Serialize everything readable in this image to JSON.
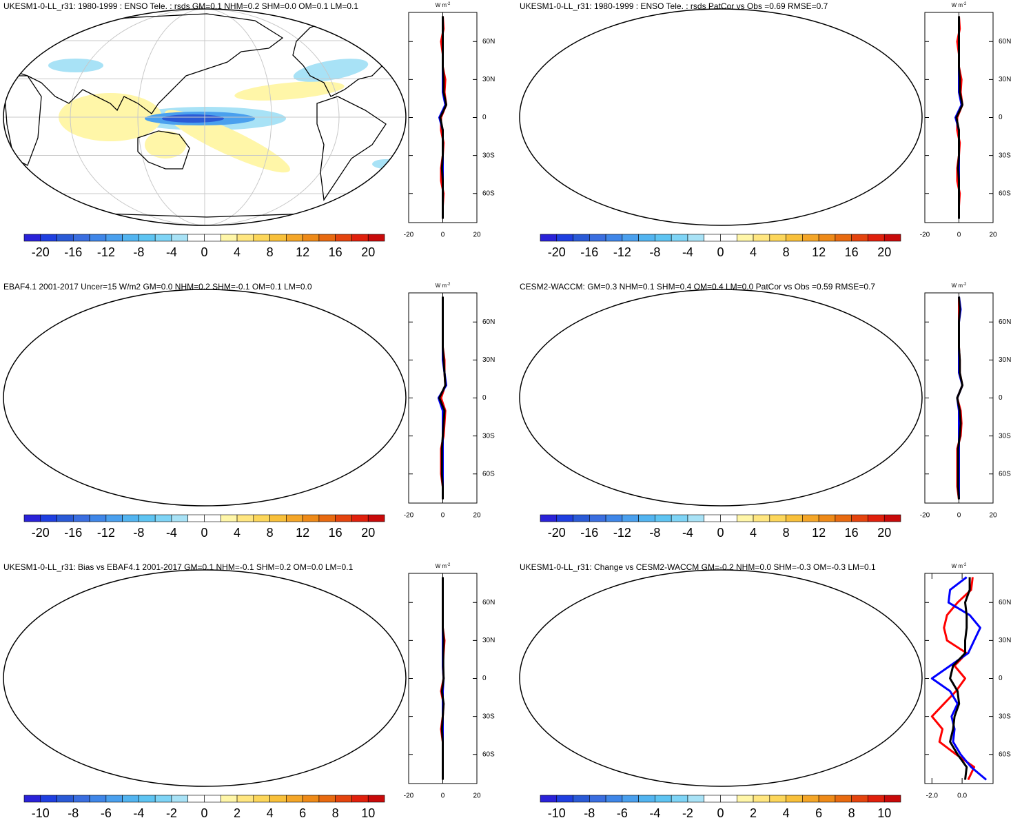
{
  "chart_data": [
    {
      "type": "map",
      "title": "UKESM1-0-LL_r31: 1980-1999 : ENSO Tele. : rsds GM=0.1 NHM=0.2 SHM=0.0 OM=0.1 LM=0.1",
      "colorbar": {
        "lim": [
          -22,
          22
        ],
        "ticks": [
          -20,
          -16,
          -12,
          -8,
          -4,
          0,
          4,
          8,
          12,
          16,
          20
        ],
        "colors": [
          "#2a22d8",
          "#1f3fe0",
          "#2a5ad6",
          "#3a6ee0",
          "#3f86e8",
          "#4aa0ee",
          "#52b4f0",
          "#5ec4f2",
          "#7ed4f6",
          "#a8e2f6",
          "#ffffff",
          "#ffffff",
          "#fff6a8",
          "#ffe680",
          "#fcd65a",
          "#f8c03a",
          "#f4a628",
          "#ee8a18",
          "#e86a10",
          "#e4440e",
          "#e0200c",
          "#c80a0a"
        ]
      },
      "profile": {
        "type": "line",
        "units": "W m",
        "units_exponent": "-2",
        "y": [
          -80,
          -70,
          -60,
          -50,
          -40,
          -30,
          -20,
          -10,
          0,
          10,
          20,
          30,
          40,
          50,
          60,
          70,
          80
        ],
        "ylim": [
          -83,
          83
        ],
        "yticks": [
          {
            "value": 60,
            "label": "60N"
          },
          {
            "value": 30,
            "label": "30N"
          },
          0,
          {
            "value": -30,
            "label": "30S"
          },
          {
            "value": -60,
            "label": "60S"
          }
        ],
        "xlim": [
          -20,
          20
        ],
        "xticks": [
          -20,
          0,
          20
        ],
        "series": [
          {
            "color": "#ff0000",
            "values": [
              0,
              0,
              0.5,
              -1,
              -1,
              0,
              0.5,
              -1,
              -1,
              2,
              1,
              1.5,
              0,
              0,
              -1,
              0.5,
              0
            ]
          },
          {
            "color": "#0000ff",
            "values": [
              0,
              0,
              0,
              0,
              0,
              0,
              0,
              0,
              -2,
              1.5,
              0,
              0,
              0,
              0,
              0,
              0,
              0
            ]
          },
          {
            "color": "#000000",
            "values": [
              0,
              0,
              0,
              0,
              -0.5,
              0,
              0,
              0,
              -1.5,
              2,
              0.5,
              0.5,
              0,
              0,
              0,
              0,
              0
            ]
          }
        ]
      }
    },
    {
      "type": "map",
      "title": "UKESM1-0-LL_r31: 1980-1999 : ENSO Tele. : rsds PatCor vs Obs =0.69 RMSE=0.7",
      "colorbar": {
        "lim": [
          -22,
          22
        ],
        "ticks": [
          -20,
          -16,
          -12,
          -8,
          -4,
          0,
          4,
          8,
          12,
          16,
          20
        ],
        "colors": [
          "#2a22d8",
          "#1f3fe0",
          "#2a5ad6",
          "#3a6ee0",
          "#3f86e8",
          "#4aa0ee",
          "#52b4f0",
          "#5ec4f2",
          "#7ed4f6",
          "#a8e2f6",
          "#ffffff",
          "#ffffff",
          "#fff6a8",
          "#ffe680",
          "#fcd65a",
          "#f8c03a",
          "#f4a628",
          "#ee8a18",
          "#e86a10",
          "#e4440e",
          "#e0200c",
          "#c80a0a"
        ]
      },
      "profile": {
        "type": "line",
        "units": "W m",
        "units_exponent": "-2",
        "y": [
          -80,
          -70,
          -60,
          -50,
          -40,
          -30,
          -20,
          -10,
          0,
          10,
          20,
          30,
          40,
          50,
          60,
          70,
          80
        ],
        "ylim": [
          -83,
          83
        ],
        "yticks": [
          {
            "value": 60,
            "label": "60N"
          },
          {
            "value": 30,
            "label": "30N"
          },
          0,
          {
            "value": -30,
            "label": "30S"
          },
          {
            "value": -60,
            "label": "60S"
          }
        ],
        "xlim": [
          -20,
          20
        ],
        "xticks": [
          -20,
          0,
          20
        ],
        "series": [
          {
            "color": "#ff0000",
            "values": [
              0,
              0,
              0.5,
              -1,
              -1,
              0,
              0.5,
              -1,
              -1,
              2,
              1,
              1.5,
              0,
              0,
              -1,
              0.5,
              0
            ]
          },
          {
            "color": "#0000ff",
            "values": [
              0,
              0,
              0,
              0,
              0,
              0,
              0,
              0,
              -2,
              1.5,
              0,
              0,
              0,
              0,
              0,
              0,
              0
            ]
          },
          {
            "color": "#000000",
            "values": [
              0,
              0,
              0,
              0,
              -0.5,
              0,
              0,
              0,
              -1.5,
              2,
              0.5,
              0.5,
              0,
              0,
              0,
              0,
              0
            ]
          }
        ]
      }
    },
    {
      "type": "map",
      "title": "EBAF4.1 2001-2017 Uncer=15 W/m2 GM=0.0 NHM=0.2 SHM=-0.1 OM=0.1 LM=0.0",
      "colorbar": {
        "lim": [
          -22,
          22
        ],
        "ticks": [
          -20,
          -16,
          -12,
          -8,
          -4,
          0,
          4,
          8,
          12,
          16,
          20
        ],
        "colors": [
          "#2a22d8",
          "#1f3fe0",
          "#2a5ad6",
          "#3a6ee0",
          "#3f86e8",
          "#4aa0ee",
          "#52b4f0",
          "#5ec4f2",
          "#7ed4f6",
          "#a8e2f6",
          "#ffffff",
          "#ffffff",
          "#fff6a8",
          "#ffe680",
          "#fcd65a",
          "#f8c03a",
          "#f4a628",
          "#ee8a18",
          "#e86a10",
          "#e4440e",
          "#e0200c",
          "#c80a0a"
        ]
      },
      "profile": {
        "type": "line",
        "units": "W m",
        "units_exponent": "-2",
        "y": [
          -80,
          -70,
          -60,
          -50,
          -40,
          -30,
          -20,
          -10,
          0,
          10,
          20,
          30,
          40,
          50,
          60,
          70,
          80
        ],
        "ylim": [
          -83,
          83
        ],
        "yticks": [
          {
            "value": 60,
            "label": "60N"
          },
          {
            "value": 30,
            "label": "30N"
          },
          0,
          {
            "value": -30,
            "label": "30S"
          },
          {
            "value": -60,
            "label": "60S"
          }
        ],
        "xlim": [
          -20,
          20
        ],
        "xticks": [
          -20,
          0,
          20
        ],
        "series": [
          {
            "color": "#ff0000",
            "values": [
              0,
              0,
              -1,
              -1,
              -1,
              0.5,
              1,
              1.5,
              -1,
              1.5,
              1,
              1,
              0,
              0,
              0,
              0,
              0
            ]
          },
          {
            "color": "#0000ff",
            "values": [
              0,
              0,
              0,
              0,
              0,
              0,
              0,
              0,
              -2.5,
              2,
              1,
              0,
              0,
              0,
              0,
              0,
              0
            ]
          },
          {
            "color": "#000000",
            "values": [
              0,
              0,
              -0.5,
              -0.5,
              -0.5,
              0,
              0.5,
              1,
              -2,
              1.5,
              1,
              0.5,
              0,
              0,
              0,
              0,
              0
            ]
          }
        ]
      }
    },
    {
      "type": "map",
      "title": "CESM2-WACCM: GM=0.3 NHM=0.1 SHM=0.4 OM=0.4 LM=0.0 PatCor vs Obs =0.59 RMSE=0.7",
      "colorbar": {
        "lim": [
          -22,
          22
        ],
        "ticks": [
          -20,
          -16,
          -12,
          -8,
          -4,
          0,
          4,
          8,
          12,
          16,
          20
        ],
        "colors": [
          "#2a22d8",
          "#1f3fe0",
          "#2a5ad6",
          "#3a6ee0",
          "#3f86e8",
          "#4aa0ee",
          "#52b4f0",
          "#5ec4f2",
          "#7ed4f6",
          "#a8e2f6",
          "#ffffff",
          "#ffffff",
          "#fff6a8",
          "#ffe680",
          "#fcd65a",
          "#f8c03a",
          "#f4a628",
          "#ee8a18",
          "#e86a10",
          "#e4440e",
          "#e0200c",
          "#c80a0a"
        ]
      },
      "profile": {
        "type": "line",
        "units": "W m",
        "units_exponent": "-2",
        "y": [
          -80,
          -70,
          -60,
          -50,
          -40,
          -30,
          -20,
          -10,
          0,
          10,
          20,
          30,
          40,
          50,
          60,
          70,
          80
        ],
        "ylim": [
          -83,
          83
        ],
        "yticks": [
          {
            "value": 60,
            "label": "60N"
          },
          {
            "value": 30,
            "label": "30N"
          },
          0,
          {
            "value": -30,
            "label": "30S"
          },
          {
            "value": -60,
            "label": "60S"
          }
        ],
        "xlim": [
          -20,
          20
        ],
        "xticks": [
          -20,
          0,
          20
        ],
        "series": [
          {
            "color": "#ff0000",
            "values": [
              0,
              -1,
              -1,
              -1,
              -1,
              1,
              1.5,
              1,
              -1,
              2,
              0.5,
              0.5,
              0,
              0,
              0,
              0,
              0
            ]
          },
          {
            "color": "#0000ff",
            "values": [
              0,
              0,
              0,
              0,
              0,
              0,
              0,
              0,
              -1,
              2,
              0,
              0,
              0,
              0,
              0,
              1,
              0
            ]
          },
          {
            "color": "#000000",
            "values": [
              0,
              -0.5,
              -0.5,
              -0.5,
              -0.5,
              0.5,
              1,
              0.5,
              -1,
              2,
              0.5,
              0.5,
              0,
              0,
              0,
              0.5,
              0
            ]
          }
        ]
      }
    },
    {
      "type": "map",
      "title": "UKESM1-0-LL_r31: Bias vs EBAF4.1 2001-2017 GM=0.1 NHM=-0.1 SHM=0.2 OM=0.0 LM=0.1",
      "colorbar": {
        "lim": [
          -11,
          11
        ],
        "ticks": [
          -10,
          -8,
          -6,
          -4,
          -2,
          0,
          2,
          4,
          6,
          8,
          10
        ],
        "colors": [
          "#2a22d8",
          "#1f3fe0",
          "#2a5ad6",
          "#3a6ee0",
          "#3f86e8",
          "#4aa0ee",
          "#52b4f0",
          "#5ec4f2",
          "#7ed4f6",
          "#a8e2f6",
          "#ffffff",
          "#ffffff",
          "#fff6a8",
          "#ffe680",
          "#fcd65a",
          "#f8c03a",
          "#f4a628",
          "#ee8a18",
          "#e86a10",
          "#e4440e",
          "#e0200c",
          "#c80a0a"
        ]
      },
      "profile": {
        "type": "line",
        "units": "W m",
        "units_exponent": "-2",
        "y": [
          -80,
          -70,
          -60,
          -50,
          -40,
          -30,
          -20,
          -10,
          0,
          10,
          20,
          30,
          40,
          50,
          60,
          70,
          80
        ],
        "ylim": [
          -83,
          83
        ],
        "yticks": [
          {
            "value": 60,
            "label": "60N"
          },
          {
            "value": 30,
            "label": "30N"
          },
          0,
          {
            "value": -30,
            "label": "30S"
          },
          {
            "value": -60,
            "label": "60S"
          }
        ],
        "xlim": [
          -20,
          20
        ],
        "xticks": [
          -20,
          0,
          20
        ],
        "series": [
          {
            "color": "#ff0000",
            "values": [
              0,
              0,
              0,
              0,
              -1,
              0,
              0.5,
              -1,
              0.5,
              0,
              0.5,
              1,
              0,
              0,
              0,
              0,
              0
            ]
          },
          {
            "color": "#0000ff",
            "values": [
              0,
              0,
              0,
              0,
              0,
              0,
              0,
              0,
              0.5,
              0,
              0,
              0,
              0,
              0,
              0,
              0,
              0
            ]
          },
          {
            "color": "#000000",
            "values": [
              0,
              0,
              0,
              0,
              -0.5,
              0,
              0.5,
              -0.5,
              0.5,
              0.3,
              0.3,
              0.5,
              0,
              0,
              0,
              0,
              0
            ]
          }
        ]
      }
    },
    {
      "type": "map",
      "title": "UKESM1-0-LL_r31: Change vs CESM2-WACCM GM=-0.2 NHM=0.0 SHM=-0.3 OM=-0.3 LM=0.1",
      "colorbar": {
        "lim": [
          -11,
          11
        ],
        "ticks": [
          -10,
          -8,
          -6,
          -4,
          -2,
          0,
          2,
          4,
          6,
          8,
          10
        ],
        "colors": [
          "#2a22d8",
          "#1f3fe0",
          "#2a5ad6",
          "#3a6ee0",
          "#3f86e8",
          "#4aa0ee",
          "#52b4f0",
          "#5ec4f2",
          "#7ed4f6",
          "#a8e2f6",
          "#ffffff",
          "#ffffff",
          "#fff6a8",
          "#ffe680",
          "#fcd65a",
          "#f8c03a",
          "#f4a628",
          "#ee8a18",
          "#e86a10",
          "#e4440e",
          "#e0200c",
          "#c80a0a"
        ]
      },
      "profile": {
        "type": "line",
        "units": "W m",
        "units_exponent": "-2",
        "y": [
          -80,
          -70,
          -60,
          -50,
          -40,
          -30,
          -20,
          -10,
          0,
          10,
          20,
          30,
          40,
          50,
          60,
          70,
          80
        ],
        "ylim": [
          -83,
          83
        ],
        "yticks": [
          {
            "value": 60,
            "label": "60N"
          },
          {
            "value": 30,
            "label": "30N"
          },
          0,
          {
            "value": -30,
            "label": "30S"
          },
          {
            "value": -60,
            "label": "60S"
          }
        ],
        "xlim": [
          -2.47,
          2.05
        ],
        "xticks": [
          {
            "value": -2,
            "label": "-2.0"
          },
          {
            "value": 0,
            "label": "0.0"
          }
        ],
        "series": [
          {
            "color": "#ff0000",
            "values": [
              0.4,
              0.8,
              -0.4,
              -1.5,
              -1.3,
              -2.0,
              -1.2,
              -0.4,
              0.2,
              -0.5,
              0.3,
              -1.0,
              -1.2,
              -1.0,
              -0.3,
              0.6,
              0.7
            ]
          },
          {
            "color": "#0000ff",
            "values": [
              1.6,
              0.6,
              -0.1,
              -0.6,
              -0.5,
              -0.7,
              -0.3,
              -0.8,
              -2.0,
              -0.8,
              0.4,
              0.8,
              1.2,
              0.5,
              -0.9,
              -0.8,
              0.3
            ]
          },
          {
            "color": "#000000",
            "values": [
              0.2,
              0.3,
              -0.3,
              -0.8,
              -0.6,
              -0.5,
              -0.2,
              -0.3,
              -0.8,
              -0.6,
              0.2,
              0.2,
              0.3,
              0.3,
              0.2,
              0.5,
              0.5
            ]
          }
        ]
      }
    }
  ]
}
